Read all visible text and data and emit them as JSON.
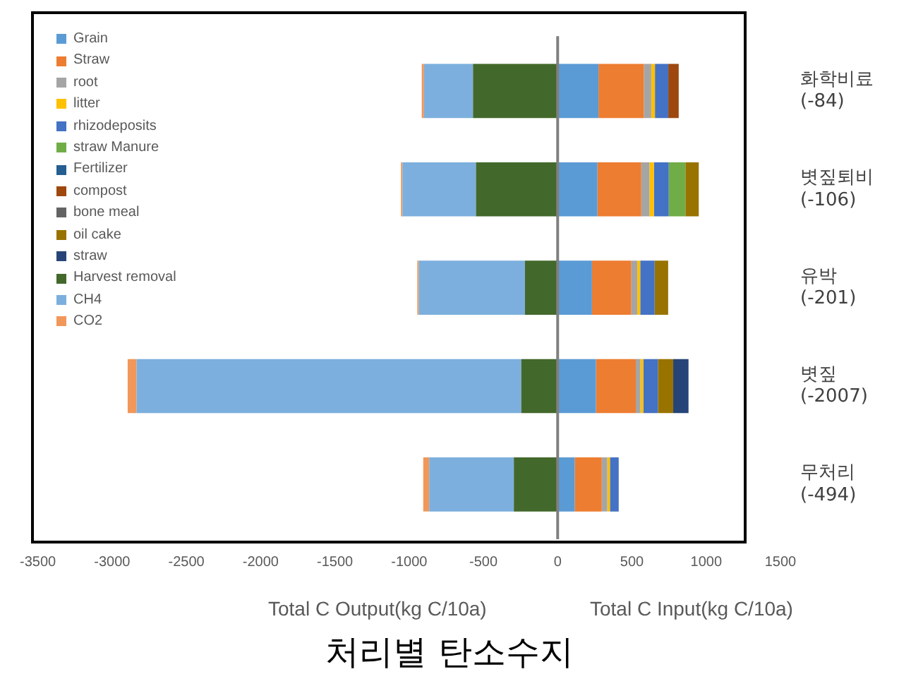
{
  "chart_data": {
    "type": "bar",
    "orientation": "horizontal",
    "stacked": true,
    "title": "처리별 탄소수지",
    "annotations": [
      "Total C Output(kg C/10a)",
      "Total C Input(kg C/10a)"
    ],
    "categories": [
      "화학비료\n(-84)",
      "볏짚퇴비\n(-106)",
      "유박\n(-201)",
      "볏짚\n(-2007)",
      "무처리\n(-494)"
    ],
    "xlim": [
      -3500,
      1500
    ],
    "xticks": [
      -3500,
      -3000,
      -2500,
      -2000,
      -1500,
      -1000,
      -500,
      0,
      500,
      1000,
      1500
    ],
    "grid": false,
    "legend": "top left",
    "ref_lines": [
      {
        "axis": "x",
        "value": 0,
        "color": "#808080"
      }
    ],
    "series": [
      {
        "name": "Grain",
        "color": "#5b9bd5",
        "values": [
          275,
          268,
          231,
          258,
          115
        ]
      },
      {
        "name": "Straw",
        "color": "#ed7d31",
        "values": [
          305,
          295,
          265,
          268,
          182
        ]
      },
      {
        "name": "root",
        "color": "#a5a5a5",
        "values": [
          50,
          55,
          40,
          31,
          37
        ]
      },
      {
        "name": "litter",
        "color": "#ffc000",
        "values": [
          25,
          30,
          20,
          20,
          18
        ]
      },
      {
        "name": "rhizodeposits",
        "color": "#4472c4",
        "values": [
          90,
          100,
          97,
          98,
          59
        ]
      },
      {
        "name": "straw Manure",
        "color": "#70ad47",
        "values": [
          null,
          112,
          null,
          null,
          null
        ]
      },
      {
        "name": "Fertilizer",
        "color": "#255e91",
        "values": [
          null,
          null,
          null,
          null,
          null
        ]
      },
      {
        "name": "compost",
        "color": "#9e480e",
        "values": [
          70,
          null,
          null,
          null,
          null
        ]
      },
      {
        "name": "bone meal",
        "color": "#636363",
        "values": [
          null,
          null,
          null,
          null,
          null
        ]
      },
      {
        "name": "oil cake",
        "color": "#997300",
        "values": [
          null,
          90,
          91,
          103,
          null
        ]
      },
      {
        "name": "straw",
        "color": "#264478",
        "values": [
          null,
          null,
          null,
          103,
          null
        ]
      },
      {
        "name": "Harvest removal",
        "color": "#43682b",
        "values": [
          -570,
          -550,
          -220,
          -245,
          -295
        ]
      },
      {
        "name": "CH4",
        "color": "#7cafdd",
        "values": [
          -330,
          -495,
          -715,
          -2590,
          -570
        ]
      },
      {
        "name": "CO2",
        "color": "#f1975a",
        "values": [
          -15,
          -10,
          -10,
          -60,
          -40
        ]
      }
    ]
  }
}
